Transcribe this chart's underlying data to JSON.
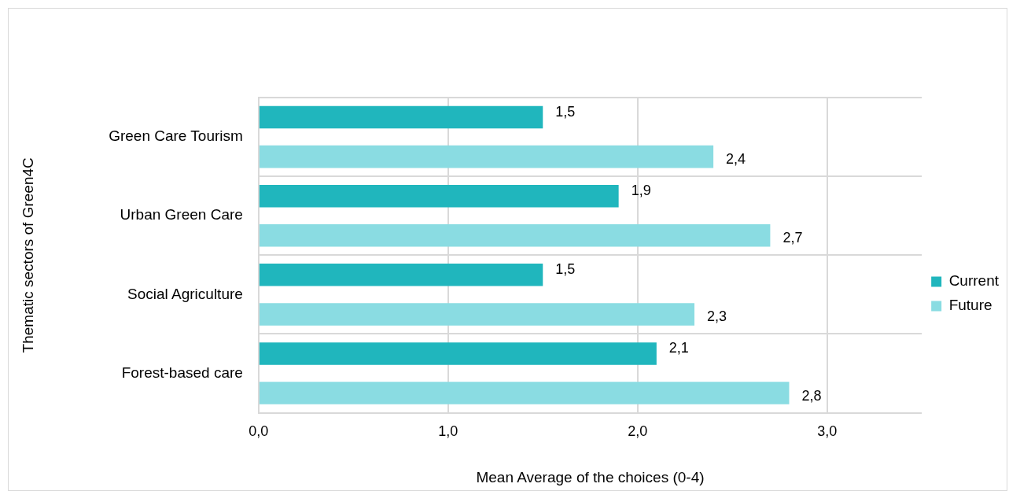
{
  "chart_data": {
    "type": "bar",
    "orientation": "horizontal",
    "ylabel": "Thematic sectors of Green4C",
    "xlabel": "Mean Average of the choices (0-4)",
    "categories": [
      "Green Care Tourism",
      "Urban Green Care",
      "Social Agriculture",
      "Forest-based care"
    ],
    "series": [
      {
        "name": "Current",
        "color": "#20b6bd",
        "values": [
          1.5,
          1.9,
          1.5,
          2.1
        ],
        "value_labels": [
          "1,5",
          "1,9",
          "1,5",
          "2,1"
        ]
      },
      {
        "name": "Future",
        "color": "#8adce2",
        "values": [
          2.4,
          2.7,
          2.3,
          2.8
        ],
        "value_labels": [
          "2,4",
          "2,7",
          "2,3",
          "2,8"
        ]
      }
    ],
    "xlim": [
      0,
      3.5
    ],
    "xticks": [
      {
        "value": 0,
        "label": "0,0"
      },
      {
        "value": 1,
        "label": "1,0"
      },
      {
        "value": 2,
        "label": "2,0"
      },
      {
        "value": 3,
        "label": "3,0"
      }
    ],
    "grid": true,
    "legend": "right"
  }
}
